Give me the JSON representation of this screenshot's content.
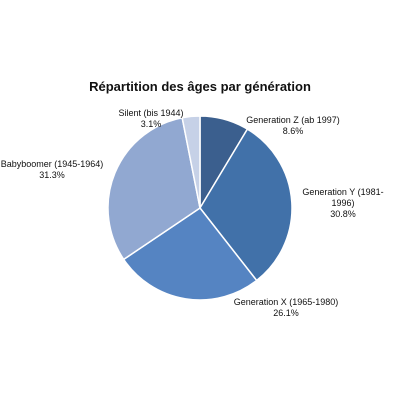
{
  "chart_data": {
    "type": "pie",
    "title": "Répartition des âges par génération",
    "categories": [
      "Generation Z (ab 1997)",
      "Generation Y (1981-1996)",
      "Generation X (1965-1980)",
      "Babyboomer (1945-1964)",
      "Silent (bis 1944)"
    ],
    "values": [
      8.6,
      30.8,
      26.1,
      31.3,
      3.1
    ],
    "value_labels": [
      "8.6%",
      "30.8%",
      "26.1%",
      "31.3%",
      "3.1%"
    ],
    "colors": [
      "#3b5f8e",
      "#4171a9",
      "#5584c2",
      "#91a8d1",
      "#c6d1e7"
    ]
  }
}
